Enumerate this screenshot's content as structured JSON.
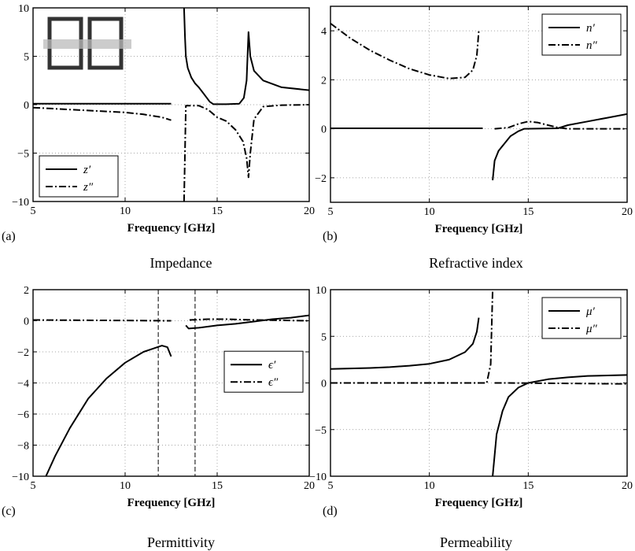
{
  "chart_data": [
    {
      "type": "line",
      "panel": "(a)",
      "caption": "Impedance",
      "xlabel": "Frequency [GHz]",
      "ylabel": "",
      "xlim": [
        5,
        20
      ],
      "ylim": [
        -10,
        10
      ],
      "xticks": [
        5,
        10,
        15,
        20
      ],
      "yticks": [
        -10,
        -5,
        0,
        5,
        10
      ],
      "grid": true,
      "legend_position": "bottom-left",
      "inset": "split-ring resonator sketch (top-left)",
      "series": [
        {
          "name": "z′",
          "style": "solid",
          "segments": [
            [
              [
                5,
                0.1
              ],
              [
                8,
                0.1
              ],
              [
                10,
                0.1
              ],
              [
                12.5,
                0.1
              ]
            ],
            [
              [
                13.2,
                10
              ],
              [
                13.25,
                7
              ],
              [
                13.3,
                5
              ],
              [
                13.4,
                3.8
              ],
              [
                13.6,
                2.8
              ],
              [
                13.8,
                2.2
              ],
              [
                14.0,
                1.8
              ],
              [
                14.2,
                1.3
              ],
              [
                14.4,
                0.8
              ],
              [
                14.6,
                0.3
              ],
              [
                14.8,
                0.05
              ],
              [
                15.5,
                0.05
              ],
              [
                16.2,
                0.1
              ],
              [
                16.45,
                0.7
              ],
              [
                16.6,
                2.5
              ],
              [
                16.7,
                7.5
              ],
              [
                16.8,
                5.0
              ],
              [
                17.0,
                3.5
              ],
              [
                17.5,
                2.5
              ],
              [
                18.5,
                1.8
              ],
              [
                20,
                1.5
              ]
            ]
          ]
        },
        {
          "name": "z″",
          "style": "dash-dot",
          "segments": [
            [
              [
                5,
                -0.3
              ],
              [
                6,
                -0.4
              ],
              [
                7,
                -0.5
              ],
              [
                8,
                -0.6
              ],
              [
                9,
                -0.7
              ],
              [
                10,
                -0.8
              ],
              [
                11,
                -1.0
              ],
              [
                12,
                -1.3
              ],
              [
                12.5,
                -1.6
              ]
            ],
            [
              [
                13.2,
                -10
              ],
              [
                13.3,
                -0.1
              ],
              [
                14.0,
                -0.1
              ],
              [
                14.5,
                -0.5
              ],
              [
                15.0,
                -1.3
              ],
              [
                15.5,
                -1.7
              ],
              [
                16.0,
                -2.6
              ],
              [
                16.4,
                -3.8
              ],
              [
                16.6,
                -5.5
              ],
              [
                16.7,
                -7.5
              ],
              [
                16.8,
                -5.0
              ],
              [
                17.0,
                -1.5
              ],
              [
                17.5,
                -0.2
              ],
              [
                18.5,
                -0.05
              ],
              [
                20,
                0.0
              ]
            ]
          ]
        }
      ]
    },
    {
      "type": "line",
      "panel": "(b)",
      "caption": "Refractive index",
      "xlabel": "Frequency [GHz]",
      "ylabel": "",
      "xlim": [
        5,
        20
      ],
      "ylim": [
        -3,
        5
      ],
      "xticks": [
        5,
        10,
        15,
        20
      ],
      "yticks": [
        -2,
        0,
        2,
        4
      ],
      "grid": true,
      "legend_position": "top-right",
      "series": [
        {
          "name": "n′",
          "style": "solid",
          "segments": [
            [
              [
                5,
                0.02
              ],
              [
                12.7,
                0.02
              ]
            ],
            [
              [
                13.2,
                -2.1
              ],
              [
                13.3,
                -1.3
              ],
              [
                13.5,
                -0.9
              ],
              [
                13.8,
                -0.6
              ],
              [
                14.1,
                -0.3
              ],
              [
                14.5,
                -0.1
              ],
              [
                14.8,
                0.0
              ],
              [
                16.5,
                0.02
              ],
              [
                17.0,
                0.15
              ],
              [
                18.0,
                0.3
              ],
              [
                19.0,
                0.45
              ],
              [
                20,
                0.6
              ]
            ]
          ]
        },
        {
          "name": "n″",
          "style": "dash-dot",
          "segments": [
            [
              [
                5,
                4.3
              ],
              [
                6,
                3.7
              ],
              [
                7,
                3.2
              ],
              [
                8,
                2.8
              ],
              [
                9,
                2.45
              ],
              [
                10,
                2.2
              ],
              [
                11,
                2.05
              ],
              [
                11.8,
                2.1
              ],
              [
                12.2,
                2.4
              ],
              [
                12.4,
                3.0
              ],
              [
                12.5,
                4.0
              ]
            ],
            [
              [
                13.3,
                0.0
              ],
              [
                14.0,
                0.05
              ],
              [
                14.5,
                0.2
              ],
              [
                15.0,
                0.3
              ],
              [
                15.5,
                0.25
              ],
              [
                16.0,
                0.15
              ],
              [
                16.5,
                0.05
              ],
              [
                17.0,
                0.0
              ],
              [
                20,
                0.0
              ]
            ]
          ]
        }
      ]
    },
    {
      "type": "line",
      "panel": "(c)",
      "caption": "Permittivity",
      "xlabel": "Frequency [GHz]",
      "ylabel": "",
      "xlim": [
        5,
        20
      ],
      "ylim": [
        -10,
        2
      ],
      "xticks": [
        5,
        10,
        15,
        20
      ],
      "yticks": [
        -10,
        -8,
        -6,
        -4,
        -2,
        0,
        2
      ],
      "grid": true,
      "legend_position": "right",
      "vertical_lines": [
        11.8,
        13.8
      ],
      "series": [
        {
          "name": "ϵ′",
          "style": "solid",
          "segments": [
            [
              [
                5.7,
                -10
              ],
              [
                6.2,
                -8.7
              ],
              [
                7,
                -6.9
              ],
              [
                8,
                -5.0
              ],
              [
                9,
                -3.7
              ],
              [
                10,
                -2.7
              ],
              [
                11,
                -2.0
              ],
              [
                11.5,
                -1.8
              ],
              [
                12,
                -1.6
              ],
              [
                12.3,
                -1.7
              ],
              [
                12.5,
                -2.3
              ]
            ],
            [
              [
                13.3,
                -0.3
              ],
              [
                13.45,
                -0.5
              ],
              [
                14,
                -0.45
              ],
              [
                15,
                -0.3
              ],
              [
                16,
                -0.2
              ],
              [
                17,
                -0.05
              ],
              [
                18,
                0.1
              ],
              [
                19,
                0.2
              ],
              [
                20,
                0.35
              ]
            ]
          ]
        },
        {
          "name": "ϵ″",
          "style": "dash-dot",
          "segments": [
            [
              [
                5,
                0.05
              ],
              [
                12.5,
                0.0
              ]
            ],
            [
              [
                13.5,
                0.05
              ],
              [
                14.5,
                0.1
              ],
              [
                15.5,
                0.1
              ],
              [
                17,
                0.05
              ],
              [
                20,
                0.0
              ]
            ]
          ]
        }
      ]
    },
    {
      "type": "line",
      "panel": "(d)",
      "caption": "Permeability",
      "xlabel": "Frequency [GHz]",
      "ylabel": "",
      "xlim": [
        5,
        20
      ],
      "ylim": [
        -10,
        10
      ],
      "xticks": [
        5,
        10,
        15,
        20
      ],
      "yticks": [
        -10,
        -5,
        0,
        5,
        10
      ],
      "grid": true,
      "legend_position": "top-right",
      "series": [
        {
          "name": "μ′",
          "style": "solid",
          "segments": [
            [
              [
                5,
                1.5
              ],
              [
                6,
                1.55
              ],
              [
                7,
                1.6
              ],
              [
                8,
                1.7
              ],
              [
                9,
                1.85
              ],
              [
                10,
                2.05
              ],
              [
                11,
                2.5
              ],
              [
                11.8,
                3.3
              ],
              [
                12.2,
                4.2
              ],
              [
                12.4,
                5.5
              ],
              [
                12.5,
                7.0
              ]
            ],
            [
              [
                13.2,
                -10
              ],
              [
                13.4,
                -5.5
              ],
              [
                13.7,
                -3.0
              ],
              [
                14.0,
                -1.5
              ],
              [
                14.5,
                -0.5
              ],
              [
                15.0,
                0.0
              ],
              [
                16.0,
                0.4
              ],
              [
                17.0,
                0.6
              ],
              [
                18.0,
                0.75
              ],
              [
                20,
                0.85
              ]
            ]
          ]
        },
        {
          "name": "μ″",
          "style": "dash-dot",
          "segments": [
            [
              [
                5,
                0.0
              ],
              [
                12.9,
                0.0
              ],
              [
                13.1,
                2.0
              ],
              [
                13.2,
                10
              ]
            ],
            [
              [
                13.3,
                0.0
              ],
              [
                14.0,
                0.0
              ],
              [
                20,
                -0.1
              ]
            ]
          ]
        }
      ]
    }
  ]
}
